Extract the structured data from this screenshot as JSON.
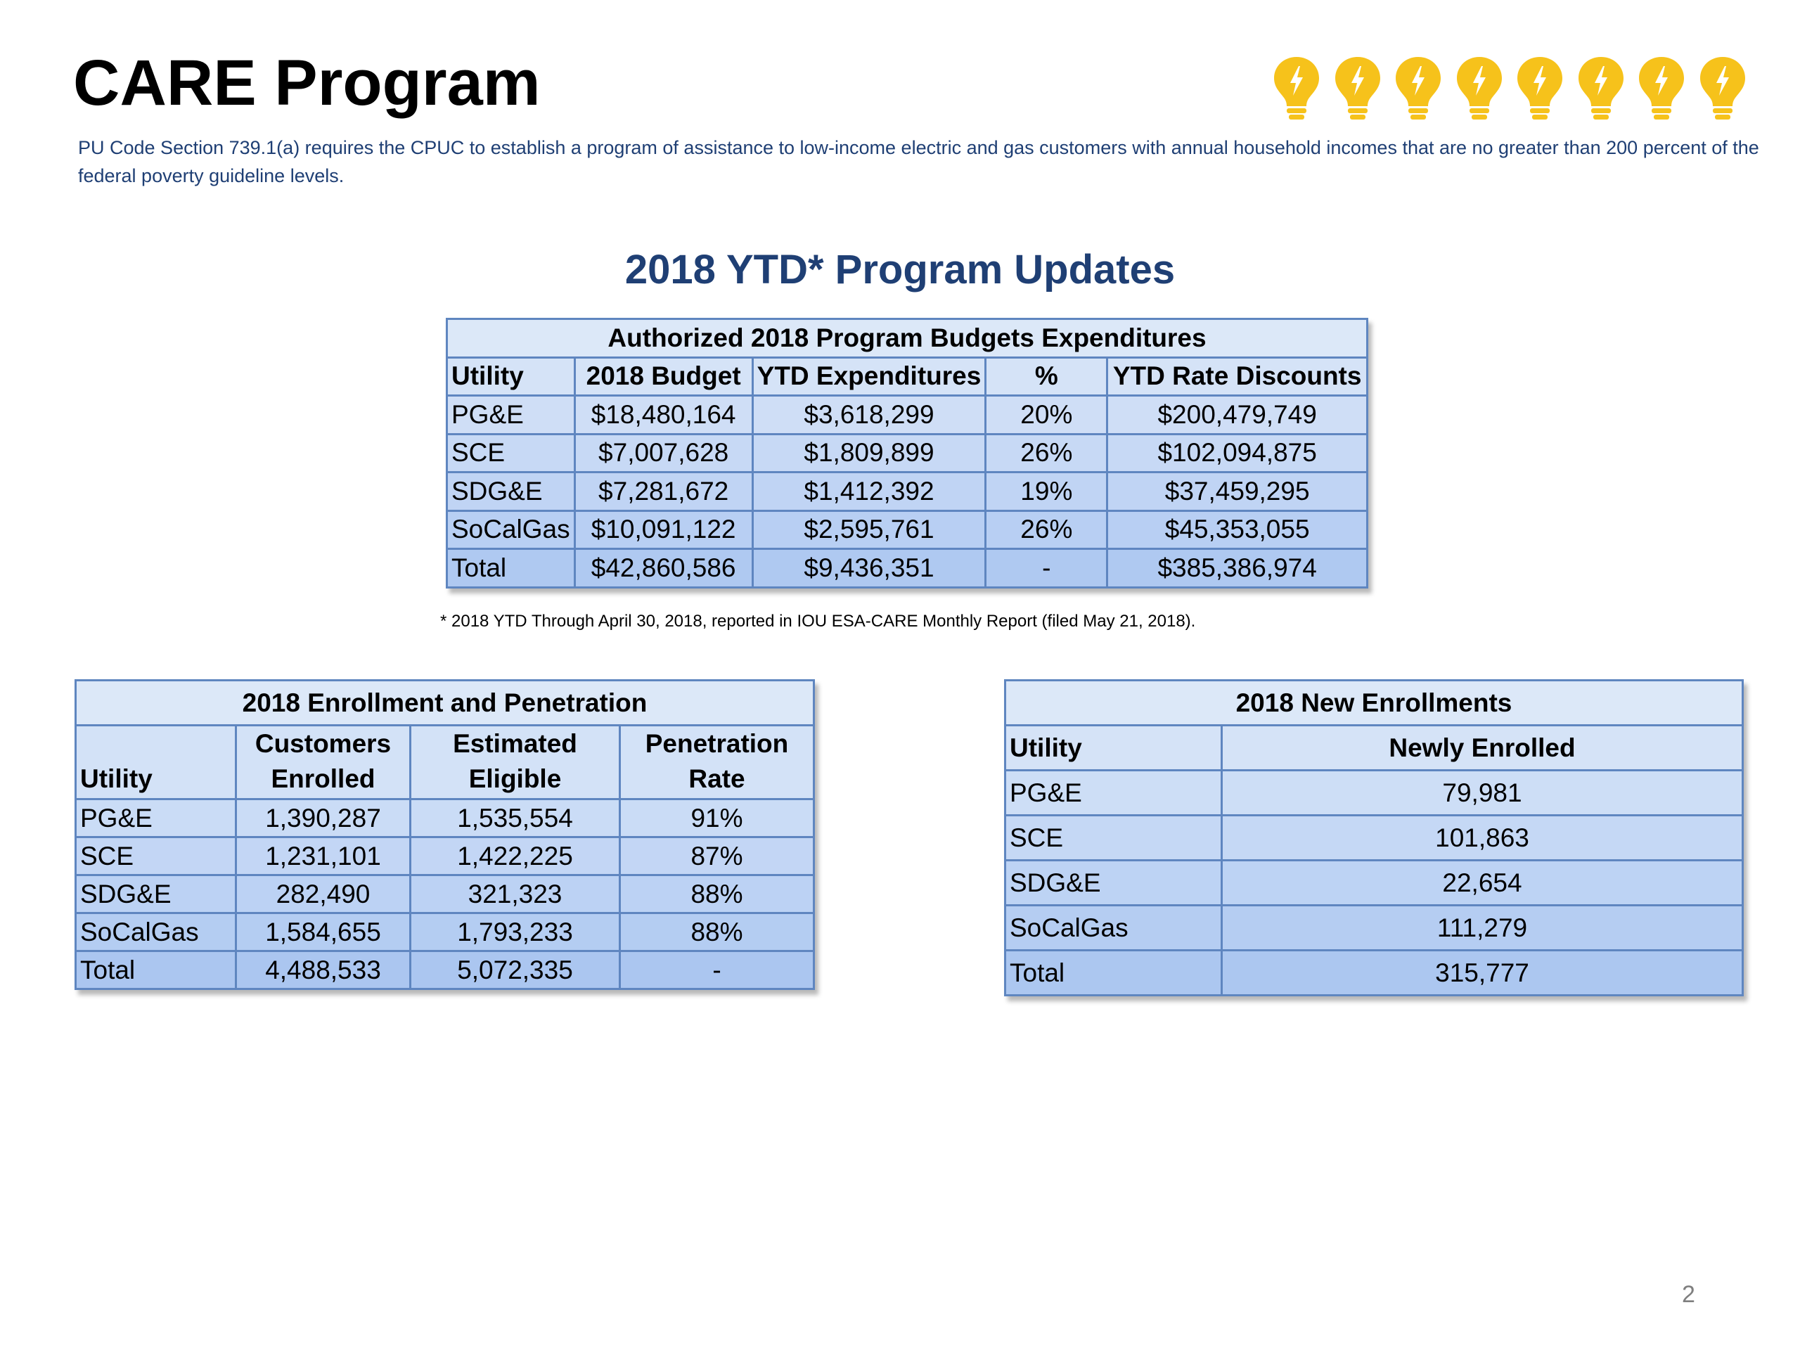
{
  "page": {
    "title": "CARE Program",
    "subtitle": "PU Code Section 739.1(a) requires the CPUC to establish a program of assistance to low-income electric and gas customers with annual household incomes that are no greater than 200 percent of the federal poverty guideline levels.",
    "section_title": "2018 YTD* Program Updates",
    "footnote": "* 2018 YTD Through April 30, 2018, reported in IOU ESA-CARE Monthly Report (filed May 21, 2018).",
    "page_number": "2",
    "icons": [
      "lightbulb-icon",
      "lightbulb-icon",
      "lightbulb-icon",
      "lightbulb-icon",
      "lightbulb-icon",
      "lightbulb-icon",
      "lightbulb-icon",
      "lightbulb-icon"
    ],
    "colors": {
      "title_text": "#000000",
      "accent_text": "#1f3f74",
      "table_border": "#5f86c0",
      "bulb": "#f6c21b"
    }
  },
  "budget_table": {
    "caption": "Authorized 2018 Program Budgets Expenditures",
    "headers": [
      "Utility",
      "2018 Budget",
      "YTD Expenditures",
      "%",
      "YTD Rate Discounts"
    ],
    "rows": [
      [
        "PG&E",
        "$18,480,164",
        "$3,618,299",
        "20%",
        "$200,479,749"
      ],
      [
        "SCE",
        "$7,007,628",
        "$1,809,899",
        "26%",
        "$102,094,875"
      ],
      [
        "SDG&E",
        "$7,281,672",
        "$1,412,392",
        "19%",
        "$37,459,295"
      ],
      [
        "SoCalGas",
        "$10,091,122",
        "$2,595,761",
        "26%",
        "$45,353,055"
      ]
    ],
    "total": [
      "Total",
      "$42,860,586",
      "$9,436,351",
      "-",
      "$385,386,974"
    ]
  },
  "enrollment_table": {
    "caption": "2018 Enrollment and Penetration",
    "headers": [
      [
        "Utility"
      ],
      [
        "Customers",
        "Enrolled"
      ],
      [
        "Estimated",
        "Eligible"
      ],
      [
        "Penetration",
        "Rate"
      ]
    ],
    "rows": [
      [
        "PG&E",
        "1,390,287",
        "1,535,554",
        "91%"
      ],
      [
        "SCE",
        "1,231,101",
        "1,422,225",
        "87%"
      ],
      [
        "SDG&E",
        "282,490",
        "321,323",
        "88%"
      ],
      [
        "SoCalGas",
        "1,584,655",
        "1,793,233",
        "88%"
      ]
    ],
    "total": [
      "Total",
      "4,488,533",
      "5,072,335",
      "-"
    ]
  },
  "new_enrollments_table": {
    "caption": "2018 New Enrollments",
    "headers": [
      "Utility",
      "Newly Enrolled"
    ],
    "rows": [
      [
        "PG&E",
        "79,981"
      ],
      [
        "SCE",
        "101,863"
      ],
      [
        "SDG&E",
        "22,654"
      ],
      [
        "SoCalGas",
        "111,279"
      ]
    ],
    "total": [
      "Total",
      "315,777"
    ]
  }
}
